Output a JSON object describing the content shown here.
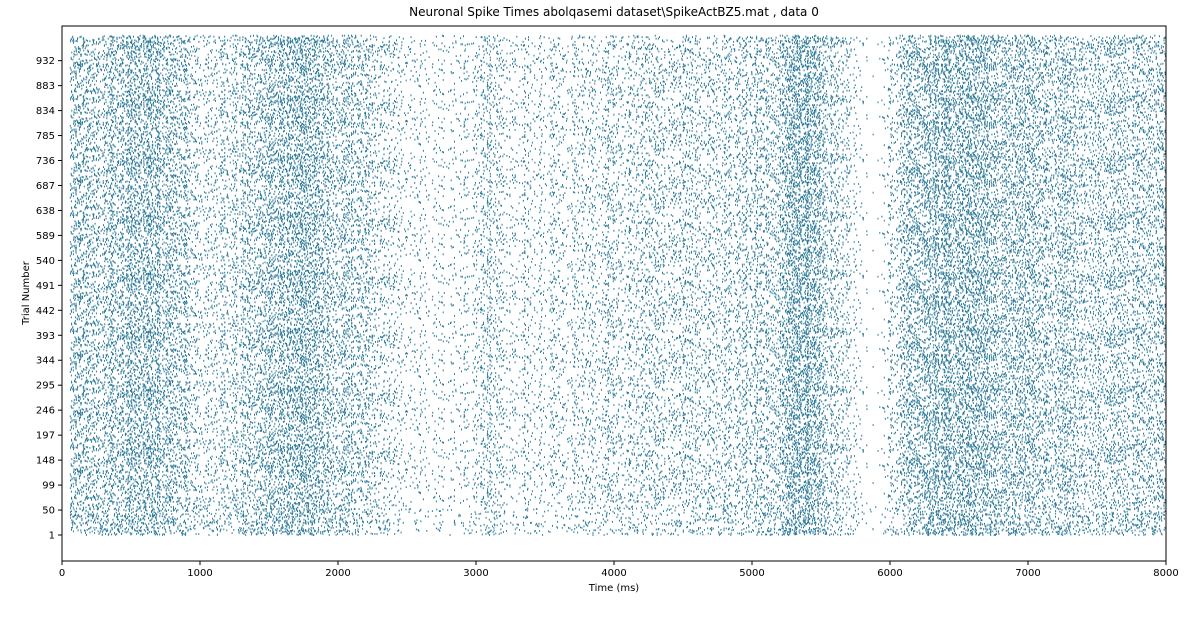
{
  "chart_data": {
    "type": "scatter",
    "title": "Neuronal Spike Times abolqasemi dataset\\SpikeActBZ5.mat , data 0",
    "xlabel": "Time (ms)",
    "ylabel": "Trial Number",
    "xlim": [
      0,
      8000
    ],
    "ylim": [
      -50,
      1000
    ],
    "x_ticks": [
      0,
      1000,
      2000,
      3000,
      4000,
      5000,
      6000,
      7000,
      8000
    ],
    "y_ticks": [
      1,
      50,
      99,
      148,
      197,
      246,
      295,
      344,
      393,
      442,
      491,
      540,
      589,
      638,
      687,
      736,
      785,
      834,
      883,
      932
    ],
    "n_trials": 981,
    "grid": false,
    "legend": "none",
    "marker": "short vertical tick per spike",
    "color": "#2a7896",
    "density_profile": {
      "time_ms": [
        0,
        250,
        500,
        650,
        800,
        1000,
        1250,
        1500,
        1700,
        1850,
        2000,
        2200,
        2500,
        2800,
        3000,
        3100,
        3200,
        3500,
        4000,
        4500,
        4800,
        5000,
        5200,
        5300,
        5400,
        5500,
        5700,
        5850,
        5950,
        6100,
        6300,
        6500,
        6700,
        7000,
        7500,
        8000
      ],
      "relative_rate": [
        0.55,
        0.55,
        0.75,
        0.8,
        0.55,
        0.3,
        0.35,
        0.7,
        0.8,
        0.75,
        0.6,
        0.4,
        0.15,
        0.12,
        0.2,
        0.45,
        0.15,
        0.2,
        0.3,
        0.35,
        0.35,
        0.35,
        0.5,
        0.95,
        1.0,
        0.6,
        0.2,
        0.02,
        0.08,
        0.55,
        0.75,
        0.8,
        0.7,
        0.55,
        0.5,
        0.5
      ]
    }
  }
}
